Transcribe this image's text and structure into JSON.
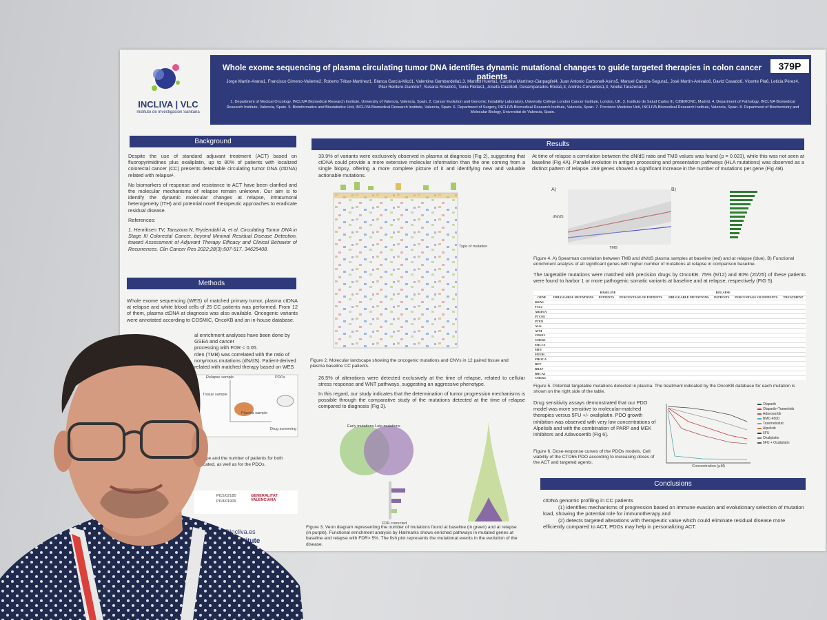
{
  "poster": {
    "badge": "379P",
    "title": "Whole exome sequencing of plasma circulating tumor DNA identifies dynamic mutational changes to guide targeted therapies in colon cancer patients",
    "logo": "INCLIVA | VLC",
    "logo_sub": "Instituto de Investigación Sanitaria",
    "authors": "Jorge Martín-Arana1, Francisco Gimeno-Valiente2, Roberto Tébar-Martínez1, Blanca García-Micó1, Valentina Gambardella1,3, Marisol Huerta1, Carolina Martínez-Ciarpaglini4, Juan Antonio Carbonell-Asins5, Manuel Cabeza-Segura1, José Martín-Arévalo6, David Casado6, Vicente Pla6, Leticia Pérez4, Pilar Rentero-Garrido7, Susana Roselló1, Tania Fleitas1, Josefa Castillo8, Desamparados Roda1,3, Andrés Cervantes1,3, Noelia Tarazona1,3",
    "affiliations": "1. Department of Medical Oncology, INCLIVA Biomedical Research Institute, University of Valencia, Valencia, Spain. 2. Cancer Evolution and Genomic Instability Laboratory, University College London Cancer Institute, London, UK. 3. Instituto de Salud Carlos III, CIBERONC, Madrid. 4. Department of Pathology, INCLIVA Biomedical Research Institute, Valencia, Spain. 5. Bioinformatics and Biostatistics Unit, INCLIVA Biomedical Research Institute, Valencia, Spain. 6. Department of Surgery, INCLIVA Biomedical Research Institute, Valencia, Spain. 7. Precision Medicine Unit, INCLIVA Biomedical Research Institute, Valencia, Spain. 8. Department of Biochemistry and Molecular Biology, Universitat de Valencia, Spain.",
    "background": {
      "heading": "Background",
      "paragraphs": [
        "Despite the use of standard adjuvant treatment (ACT) based on fluoropyrimidines plus oxaliplatin, up to 80% of patients with localized colorectal cancer (CC) presents detectable circulating tumor DNA (ctDNA) related with relapse¹.",
        "No biomarkers of response and resistance to ACT have been clarified and the molecular mechanisms of relapse remain unknown. Our aim is to identify the dynamic molecular changes at relapse, intratumoral heterogeneity (ITH) and potential novel therapeutic approaches to eradicate residual disease.",
        "References:",
        "1. Henriksen TV, Tarazona N, Frydendahl A, et al. Circulating Tumor DNA in Stage III Colorectal Cancer, beyond Minimal Residual Disease Detection, toward Assessment of Adjuvant Therapy Efficacy and Clinical Behavior of Recurrences. Clin Cancer Res 2022;28(3):507-517. 34625408."
      ]
    },
    "methods": {
      "heading": "Methods",
      "paragraph": "Whole exome sequencing (WES) of matched primary tumor, plasma ctDNA at relapse and white blood cells of 25 CC patients was performed. From 12 of them, plasma ctDNA at diagnosis was also available. Oncogenic variants were annotated according to COSMIC, OncoKB and an in-house database.",
      "fragments": [
        "al enrichment analyses have been done by GSEA and cancer",
        "processing with FDR < 0.05.",
        "rden (TMB) was correlated with the ratio of",
        "nonymous mutations (dN/dS). Patient-derived",
        "related with matched therapy based on WES"
      ],
      "figure_labels": [
        "Relapse sample",
        "PDOs",
        "Tissue sample",
        "Plasma sample",
        "Drug screening"
      ],
      "caption_fragments": [
        "or type and the number of patients for both",
        "ndicated, as well as for the PDOs."
      ],
      "funding": [
        "PI15/02180",
        "PI18/01909",
        "GENERALITAT VALENCIANA"
      ],
      "contact": "rtin@incliva.es",
      "institute": "ch Institute"
    },
    "results": {
      "heading": "Results",
      "p1": "33.9% of variants were exclusively observed in plasma at diagnosis (Fig 2), suggesting that ctDNA could provide a more extensive molecular information than the one coming from a single biopsy, offering a more complete picture of it and identifying new and valuable actionable mutations.",
      "fig2_legend": "Type of mutation",
      "fig2_caption": "Figure 2. Molecular landscape showing the oncogenic mutations and CNVs in 12 paired tissue and plasma baseline CC patients.",
      "p2": "26.5% of alterations were detected exclusively at the time of relapse, related to cellular stress response and WNT pathways, suggesting an aggressive phenotype.",
      "p3": "In this regard, our study indicates that the determination of tumor progression mechanisms is possible through the comparative study of the mutations detected at the time of relapse compared to diagnosis (Fig 3).",
      "fig3_labels": [
        "Early mutations",
        "Late mutations",
        "FDR corrected"
      ],
      "fig3_caption": "Figure 3. Venn diagram representing the number of mutations found at baseline (in green) and at relapse (in purple). Functional enrichment analysis by Hallmarks shows enriched pathways in mutated genes at baseline and relapse with FDR> 5%. The fish plot represents the mutational events in the evolution of the disease.",
      "p4": "At time of relapse a correlation between the dN/dS ratio and TMB values was found (p = 0.023), while this was not seen at baseline (Fig 4A). Parallel evolution in antigen processing and presentation pathways (HLA mutations) was observed as a distinct pattern of relapse. 269 genes showed a significant increase in the number of mutations per gene (Fig 4B).",
      "fig4_labels": [
        "A)",
        "B)",
        "TMB",
        "dN/dS"
      ],
      "fig4_caption": "Figure 4. A) Spearman correlation between TMB and dN/dS plasma samples at baseline (red) and at relapse (blue). B) Functional enrichment analysis of all significant genes with higher number of mutations at relapse in comparison baseline.",
      "p5": "The targetable mutations were matched with precision drugs by OncoKB. 75% (9/12) and 80% (20/25) of these patients were found to harbor 1 or more pathogenic somatic variants at baseline and at relapse, respectively (FIG 5).",
      "table": {
        "groups": [
          "BASELINE",
          "RELAPSE"
        ],
        "headers": [
          "GENE",
          "DRUGGABLE MUTATIONS",
          "PATIENTS",
          "PERCENTAGE OF PATIENTS",
          "DRUGGABLE MUTATIONS",
          "PATIENTS",
          "PERCENTAGE OF PATIENTS",
          "TREATMENT"
        ],
        "genes": [
          "KRAS",
          "TSC2",
          "ARID1A",
          "PTCH1",
          "PTEN",
          "ALK",
          "ATM",
          "CDK12",
          "CHEK1",
          "ERCC3",
          "MET",
          "MTOR",
          "PIK3CA",
          "RET",
          "BRAF",
          "BRCA2",
          "CHEK2",
          "MAP2K1",
          "TSC1"
        ]
      },
      "fig5_caption": "Figure 5. Potential targetable mutations detected in plasma. The treatment indicated by the OncoKB database for each mutation is shown on the right side of the table.",
      "p6": "Drug sensitivity assays demonstrated that our PDO model was more sensitive to molecular-matched therapies versus 5FU +/- oxaliplatin. PDO growth inhibition was observed with very low concentrations of Alpelisib and with the combination of PARP and MEK inhibitors and Adavosertib (Fig 6).",
      "fig6_legend": [
        "Olaparib",
        "Olaparib+Trametinib",
        "Adavosertib",
        "BMC-4500",
        "Tazemetostat",
        "Alpelisib",
        "5FU",
        "Oxaliplatin",
        "5FU + Oxaliplatin"
      ],
      "fig6_xlabel": "Concentration (µM)",
      "fig6_caption": "Figure 6. Dose-response curves of the PDOs models. Cell viability of the CTO65 PDO according to increasing doses of the ACT and targeted agents."
    },
    "conclusions": {
      "heading": "Conclusions",
      "lines": [
        "ctDNA genomic profiling in CC patients",
        "(1) identifies mechanisms of progression based on immune evasion and evolutionary selection of mutation load, showing the potential role for immunotherapy and",
        "(2) detects targeted alterations with therapeutic value which could eliminate residual disease more efficiently compared to ACT, PDOs may help in personalizing ACT."
      ]
    }
  }
}
